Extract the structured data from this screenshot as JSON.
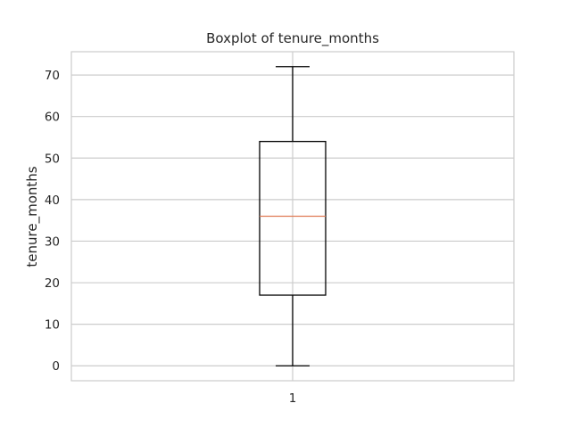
{
  "chart_data": {
    "type": "boxplot",
    "title": "Boxplot of tenure_months",
    "xlabel": "",
    "ylabel": "tenure_months",
    "categories": [
      "1"
    ],
    "ylim": [
      -3.6,
      75.6
    ],
    "yticks": [
      0,
      10,
      20,
      30,
      40,
      50,
      60,
      70
    ],
    "grid": true,
    "boxes": [
      {
        "category": "1",
        "whisker_low": 0,
        "q1": 17,
        "median": 36,
        "q3": 54,
        "whisker_high": 72
      }
    ],
    "colors": {
      "box": "#000000",
      "median": "#e07b54",
      "grid": "#cccccc",
      "frame": "#cccccc",
      "text": "#262626"
    }
  }
}
